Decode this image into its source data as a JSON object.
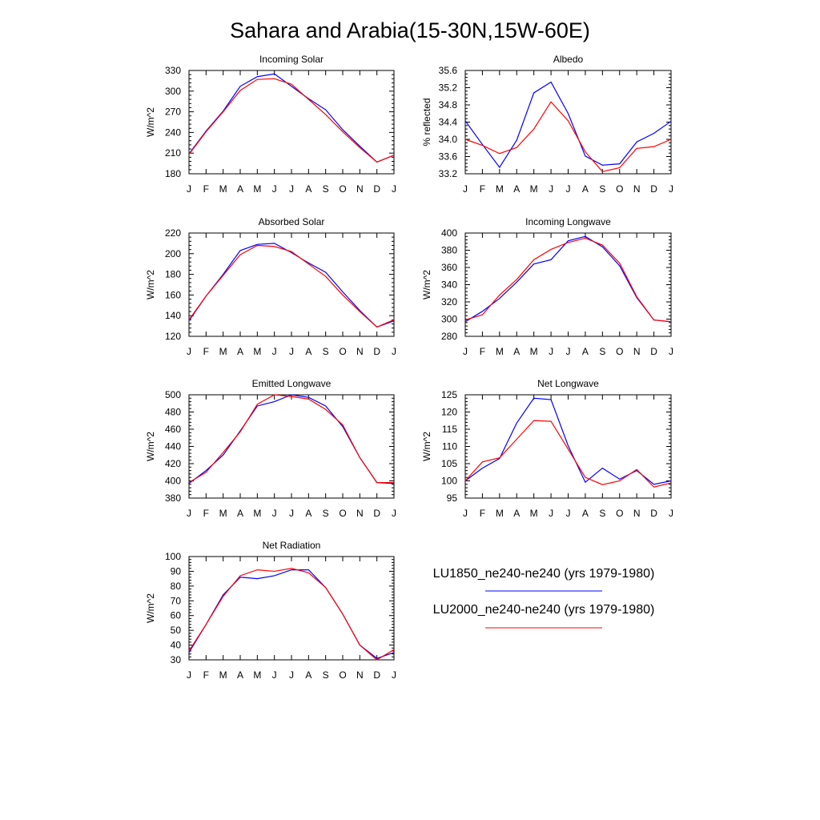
{
  "figure": {
    "title": "Sahara and Arabia(15-30N,15W-60E)"
  },
  "legend": {
    "entries": [
      {
        "label": "LU1850_ne240-ne240 (yrs 1979-1980)",
        "color": "#0000ff"
      },
      {
        "label": "LU2000_ne240-ne240 (yrs 1979-1980)",
        "color": "#ff0000"
      }
    ]
  },
  "chart_data": [
    {
      "type": "line",
      "title": "Incoming Solar",
      "ylabel": "W/m^2",
      "categories": [
        "J",
        "F",
        "M",
        "A",
        "M",
        "J",
        "J",
        "A",
        "S",
        "O",
        "N",
        "D",
        "J"
      ],
      "ylim": [
        180,
        330
      ],
      "yticks": [
        180,
        210,
        240,
        270,
        300,
        330
      ],
      "series": [
        {
          "name": "LU1850_ne240-ne240 (yrs 1979-1980)",
          "color": "#0000ff",
          "values": [
            209,
            242,
            271,
            307,
            321,
            325,
            307,
            289,
            273,
            244,
            220,
            197,
            207
          ]
        },
        {
          "name": "LU2000_ne240-ne240 (yrs 1979-1980)",
          "color": "#ff0000",
          "values": [
            208,
            241,
            270,
            301,
            317,
            318,
            310,
            288,
            266,
            241,
            218,
            197,
            207
          ]
        }
      ]
    },
    {
      "type": "line",
      "title": "Albedo",
      "ylabel": "% reflected",
      "categories": [
        "J",
        "F",
        "M",
        "A",
        "M",
        "J",
        "J",
        "A",
        "S",
        "O",
        "N",
        "D",
        "J"
      ],
      "ylim": [
        33.2,
        35.6
      ],
      "yticks": [
        33.2,
        33.6,
        34.0,
        34.4,
        34.8,
        35.2,
        35.6
      ],
      "series": [
        {
          "name": "LU1850_ne240-ne240 (yrs 1979-1980)",
          "color": "#0000ff",
          "values": [
            34.43,
            33.88,
            33.35,
            33.98,
            35.08,
            35.33,
            34.6,
            33.61,
            33.4,
            33.43,
            33.94,
            34.14,
            34.42
          ]
        },
        {
          "name": "LU2000_ne240-ne240 (yrs 1979-1980)",
          "color": "#ff0000",
          "values": [
            34.0,
            33.86,
            33.67,
            33.81,
            34.24,
            34.87,
            34.43,
            33.71,
            33.25,
            33.34,
            33.79,
            33.83,
            34.0
          ]
        }
      ]
    },
    {
      "type": "line",
      "title": "Absorbed Solar",
      "ylabel": "W/m^2",
      "categories": [
        "J",
        "F",
        "M",
        "A",
        "M",
        "J",
        "J",
        "A",
        "S",
        "O",
        "N",
        "D",
        "J"
      ],
      "ylim": [
        120,
        220
      ],
      "yticks": [
        120,
        140,
        160,
        180,
        200,
        220
      ],
      "series": [
        {
          "name": "LU1850_ne240-ne240 (yrs 1979-1980)",
          "color": "#0000ff",
          "values": [
            135,
            159,
            180,
            203,
            209,
            210,
            201,
            191,
            182,
            163,
            145,
            129,
            135
          ]
        },
        {
          "name": "LU2000_ne240-ne240 (yrs 1979-1980)",
          "color": "#ff0000",
          "values": [
            136,
            159,
            179,
            199,
            208,
            207,
            202,
            190,
            178,
            160,
            144,
            129,
            136
          ]
        }
      ]
    },
    {
      "type": "line",
      "title": "Incoming Longwave",
      "ylabel": "W/m^2",
      "categories": [
        "J",
        "F",
        "M",
        "A",
        "M",
        "J",
        "J",
        "A",
        "S",
        "O",
        "N",
        "D",
        "J"
      ],
      "ylim": [
        280,
        400
      ],
      "yticks": [
        280,
        300,
        320,
        340,
        360,
        380,
        400
      ],
      "series": [
        {
          "name": "LU1850_ne240-ne240 (yrs 1979-1980)",
          "color": "#0000ff",
          "values": [
            297,
            309,
            324,
            343,
            364,
            369,
            391,
            396,
            384,
            362,
            325,
            299,
            297
          ]
        },
        {
          "name": "LU2000_ne240-ne240 (yrs 1979-1980)",
          "color": "#ff0000",
          "values": [
            299,
            305,
            328,
            346,
            369,
            381,
            389,
            394,
            386,
            365,
            326,
            299,
            297
          ]
        }
      ]
    },
    {
      "type": "line",
      "title": "Emitted Longwave",
      "ylabel": "W/m^2",
      "categories": [
        "J",
        "F",
        "M",
        "A",
        "M",
        "J",
        "J",
        "A",
        "S",
        "O",
        "N",
        "D",
        "J"
      ],
      "ylim": [
        380,
        500
      ],
      "yticks": [
        380,
        400,
        420,
        440,
        460,
        480,
        500
      ],
      "series": [
        {
          "name": "LU1850_ne240-ne240 (yrs 1979-1980)",
          "color": "#0000ff",
          "values": [
            397,
            412,
            430,
            458,
            487,
            492,
            500,
            497,
            487,
            463,
            427,
            398,
            397
          ]
        },
        {
          "name": "LU2000_ne240-ne240 (yrs 1979-1980)",
          "color": "#ff0000",
          "values": [
            398,
            410,
            433,
            457,
            489,
            500,
            498,
            495,
            483,
            465,
            427,
            398,
            398
          ]
        }
      ]
    },
    {
      "type": "line",
      "title": "Net Longwave",
      "ylabel": "W/m^2",
      "categories": [
        "J",
        "F",
        "M",
        "A",
        "M",
        "J",
        "J",
        "A",
        "S",
        "O",
        "N",
        "D",
        "J"
      ],
      "ylim": [
        95,
        125
      ],
      "yticks": [
        95,
        100,
        105,
        110,
        115,
        120,
        125
      ],
      "series": [
        {
          "name": "LU1850_ne240-ne240 (yrs 1979-1980)",
          "color": "#0000ff",
          "values": [
            100,
            103.7,
            106.5,
            116.8,
            124.0,
            123.6,
            110.2,
            99.6,
            103.7,
            100.5,
            103.0,
            99.0,
            100.0
          ]
        },
        {
          "name": "LU2000_ne240-ne240 (yrs 1979-1980)",
          "color": "#ff0000",
          "values": [
            100,
            105.5,
            106.7,
            112.1,
            117.5,
            117.3,
            109.2,
            101.0,
            98.9,
            100.0,
            103.3,
            98.2,
            99.4
          ]
        }
      ]
    },
    {
      "type": "line",
      "title": "Net Radiation",
      "ylabel": "W/m^2",
      "categories": [
        "J",
        "F",
        "M",
        "A",
        "M",
        "J",
        "J",
        "A",
        "S",
        "O",
        "N",
        "D",
        "J"
      ],
      "ylim": [
        30,
        100
      ],
      "yticks": [
        30,
        40,
        50,
        60,
        70,
        80,
        90,
        100
      ],
      "series": [
        {
          "name": "LU1850_ne240-ne240 (yrs 1979-1980)",
          "color": "#0000ff",
          "values": [
            35,
            54,
            74,
            86,
            85,
            87,
            91,
            91,
            79,
            61,
            40,
            31,
            35
          ]
        },
        {
          "name": "LU2000_ne240-ne240 (yrs 1979-1980)",
          "color": "#ff0000",
          "values": [
            36,
            54,
            73,
            87,
            91,
            90,
            92,
            89,
            79,
            61,
            40,
            30,
            37
          ]
        }
      ]
    }
  ]
}
